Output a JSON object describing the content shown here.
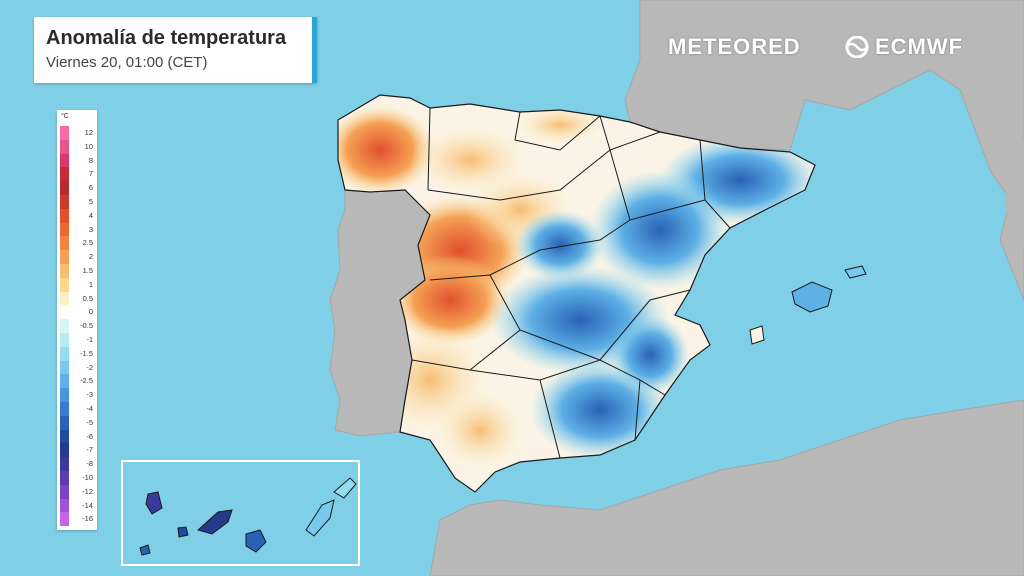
{
  "title": "Anomalía de temperatura",
  "subtitle": "Viernes 20, 01:00 (CET)",
  "brands": {
    "meteored": "METEORED",
    "ecmwf": "ECMWF"
  },
  "legend": {
    "unit": "°C",
    "labels": [
      "12",
      "10",
      "8",
      "7",
      "6",
      "5",
      "4",
      "3",
      "2.5",
      "2",
      "1.5",
      "1",
      "0.5",
      "0",
      "-0.5",
      "-1",
      "-1.5",
      "-2",
      "-2.5",
      "-3",
      "-4",
      "-5",
      "-6",
      "-7",
      "-8",
      "-10",
      "-12",
      "-14",
      "-16"
    ],
    "colors": [
      "#f56aa8",
      "#e8558c",
      "#d93a6e",
      "#c42a3a",
      "#b52a2c",
      "#cc3a2a",
      "#e0512e",
      "#eb6a34",
      "#f08440",
      "#f5a054",
      "#f7bd72",
      "#f9d98e",
      "#fcefc4",
      "#ffffff",
      "#d6f5f5",
      "#b4ecef",
      "#94dcef",
      "#78c8ef",
      "#5eb0e6",
      "#4a96dc",
      "#377ccd",
      "#2862b6",
      "#1f4b9c",
      "#263a8c",
      "#3a3a9a",
      "#5a3cae",
      "#7a44c6",
      "#a052d8",
      "#c664e6"
    ]
  },
  "colors": {
    "sea": "#7fd0e6",
    "land_outside": "#b8b8b8",
    "accent": "#2aa5d8"
  },
  "regions_note_hidden": null
}
